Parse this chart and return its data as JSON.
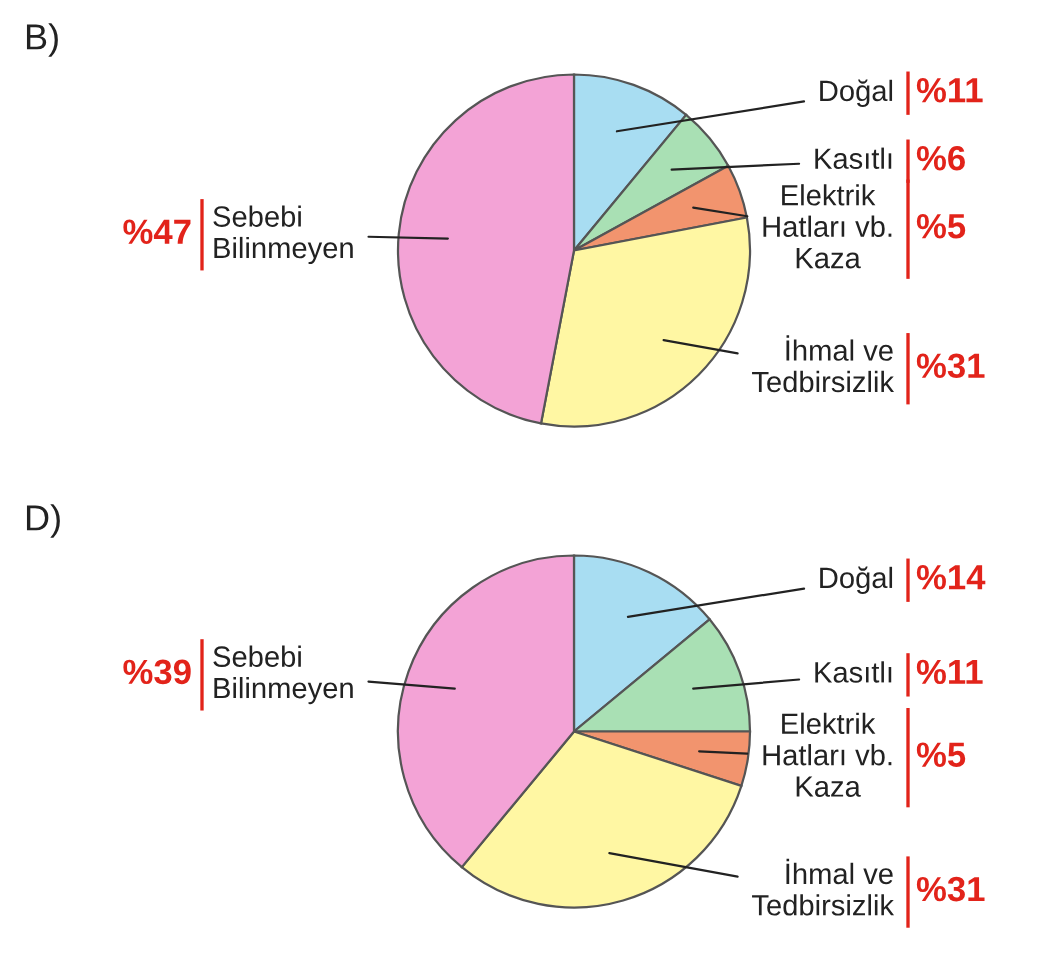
{
  "chart_data": [
    {
      "type": "pie",
      "title": "B)",
      "categories": [
        "Doğal",
        "Kasıtlı",
        "Elektrik\nHatları vb.\nKaza",
        "İhmal ve\nTedbirsizlik",
        "Sebebi\nBilinmeyen"
      ],
      "values": [
        11,
        6,
        5,
        31,
        47
      ],
      "colors": [
        "#a8ddf2",
        "#a9e0b4",
        "#f2946e",
        "#fff7a3",
        "#f3a3d6"
      ],
      "value_labels": [
        "%11",
        "%6",
        "%5",
        "%31",
        "%47"
      ]
    },
    {
      "type": "pie",
      "title": "D)",
      "categories": [
        "Doğal",
        "Kasıtlı",
        "Elektrik\nHatları vb.\nKaza",
        "İhmal ve\nTedbirsizlik",
        "Sebebi\nBilinmeyen"
      ],
      "values": [
        14,
        11,
        5,
        31,
        39
      ],
      "colors": [
        "#a8ddf2",
        "#a9e0b4",
        "#f2946e",
        "#fff7a3",
        "#f3a3d6"
      ],
      "value_labels": [
        "%14",
        "%11",
        "%5",
        "%31",
        "%39"
      ]
    }
  ]
}
